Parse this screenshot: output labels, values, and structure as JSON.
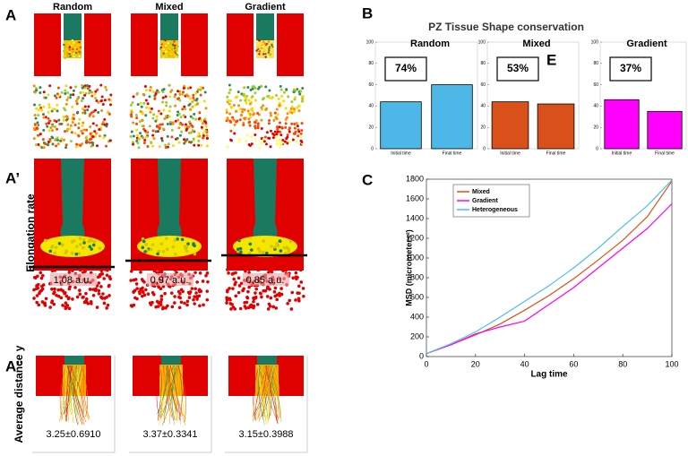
{
  "panel_labels": [
    "A",
    "A’",
    "A’’",
    "B",
    "C",
    "E"
  ],
  "panel_a": {
    "column_titles": [
      "Random",
      "Mixed",
      "Gradient"
    ],
    "side_label": "Elongation rate",
    "elongation_labels": [
      "1,08 a.u.",
      "0,97 a.u.",
      "0,85 a.u."
    ],
    "distance_label": "Average distance y",
    "distance_labels": [
      "3.25±0.6910",
      "3.37±0.3341",
      "3.15±0.3988"
    ]
  },
  "panel_b_title": "PZ Tissue Shape conservation",
  "chart_data": [
    {
      "type": "bar",
      "title": "Random",
      "annotation": "74%",
      "categories": [
        "Initial time",
        "Final time"
      ],
      "values": [
        44,
        60
      ],
      "color": "#4db8e8",
      "ylim": [
        0,
        100
      ],
      "yticks": [
        0,
        20,
        40,
        60,
        80,
        100
      ]
    },
    {
      "type": "bar",
      "title": "Mixed",
      "annotation": "53%",
      "categories": [
        "Initial time",
        "Final time"
      ],
      "values": [
        44,
        42
      ],
      "color": "#d9501a",
      "ylim": [
        0,
        100
      ],
      "yticks": [
        0,
        20,
        40,
        60,
        80,
        100
      ]
    },
    {
      "type": "bar",
      "title": "Gradient",
      "annotation": "37%",
      "categories": [
        "Initial time",
        "Final time"
      ],
      "values": [
        46,
        35
      ],
      "color": "#ff00ff",
      "ylim": [
        0,
        100
      ],
      "yticks": [
        0,
        20,
        40,
        60,
        80,
        100
      ]
    },
    {
      "type": "line",
      "xlabel": "Lag time",
      "ylabel": "MSD (micrometers²)",
      "x": [
        0,
        10,
        20,
        30,
        40,
        50,
        60,
        70,
        80,
        90,
        100
      ],
      "series": [
        {
          "name": "Mixed",
          "color": "#d95319",
          "values": [
            30,
            120,
            220,
            330,
            470,
            620,
            790,
            980,
            1180,
            1420,
            1780
          ]
        },
        {
          "name": "Gradient",
          "color": "#ff00ff",
          "values": [
            30,
            120,
            230,
            300,
            360,
            530,
            700,
            900,
            1100,
            1300,
            1550
          ]
        },
        {
          "name": "Heterogeneous",
          "color": "#4dbeee",
          "values": [
            30,
            130,
            250,
            400,
            560,
            720,
            900,
            1100,
            1320,
            1530,
            1790
          ]
        }
      ],
      "xlim": [
        0,
        100
      ],
      "xticks": [
        0,
        20,
        40,
        60,
        80,
        100
      ],
      "ylim": [
        0,
        1800
      ],
      "yticks": [
        0,
        200,
        400,
        600,
        800,
        1000,
        1200,
        1400,
        1600,
        1800
      ],
      "legend": "upper left"
    }
  ]
}
